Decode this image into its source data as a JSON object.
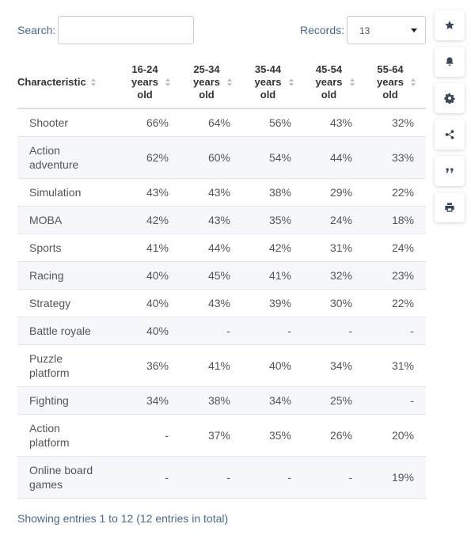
{
  "controls": {
    "search_label": "Search:",
    "search_value": "",
    "records_label": "Records:",
    "records_value": "13"
  },
  "table": {
    "headers": [
      {
        "label": "Characteristic"
      },
      {
        "label": "16-24 years old"
      },
      {
        "label": "25-34 years old"
      },
      {
        "label": "35-44 years old"
      },
      {
        "label": "45-54 years old"
      },
      {
        "label": "55-64 years old"
      }
    ],
    "rows": [
      {
        "name": "Shooter",
        "values": [
          "66%",
          "64%",
          "56%",
          "43%",
          "32%"
        ]
      },
      {
        "name": "Action adventure",
        "values": [
          "62%",
          "60%",
          "54%",
          "44%",
          "33%"
        ]
      },
      {
        "name": "Simulation",
        "values": [
          "43%",
          "43%",
          "38%",
          "29%",
          "22%"
        ]
      },
      {
        "name": "MOBA",
        "values": [
          "42%",
          "43%",
          "35%",
          "24%",
          "18%"
        ]
      },
      {
        "name": "Sports",
        "values": [
          "41%",
          "44%",
          "42%",
          "31%",
          "24%"
        ]
      },
      {
        "name": "Racing",
        "values": [
          "40%",
          "45%",
          "41%",
          "32%",
          "23%"
        ]
      },
      {
        "name": "Strategy",
        "values": [
          "40%",
          "43%",
          "39%",
          "30%",
          "22%"
        ]
      },
      {
        "name": "Battle royale",
        "values": [
          "40%",
          "-",
          "-",
          "-",
          "-"
        ]
      },
      {
        "name": "Puzzle platform",
        "values": [
          "36%",
          "41%",
          "40%",
          "34%",
          "31%"
        ]
      },
      {
        "name": "Fighting",
        "values": [
          "34%",
          "38%",
          "34%",
          "25%",
          "-"
        ]
      },
      {
        "name": "Action platform",
        "values": [
          "-",
          "37%",
          "35%",
          "26%",
          "20%"
        ]
      },
      {
        "name": "Online board games",
        "values": [
          "-",
          "-",
          "-",
          "-",
          "19%"
        ]
      }
    ]
  },
  "footer": {
    "entries_text": "Showing entries 1 to 12 (12 entries in total)"
  },
  "toolbar": {
    "buttons": [
      {
        "icon": "star-icon",
        "action": "favorite"
      },
      {
        "icon": "bell-icon",
        "action": "notify"
      },
      {
        "icon": "gear-icon",
        "action": "settings"
      },
      {
        "icon": "share-icon",
        "action": "share"
      },
      {
        "icon": "quote-icon",
        "action": "cite"
      },
      {
        "icon": "print-icon",
        "action": "print"
      }
    ]
  }
}
